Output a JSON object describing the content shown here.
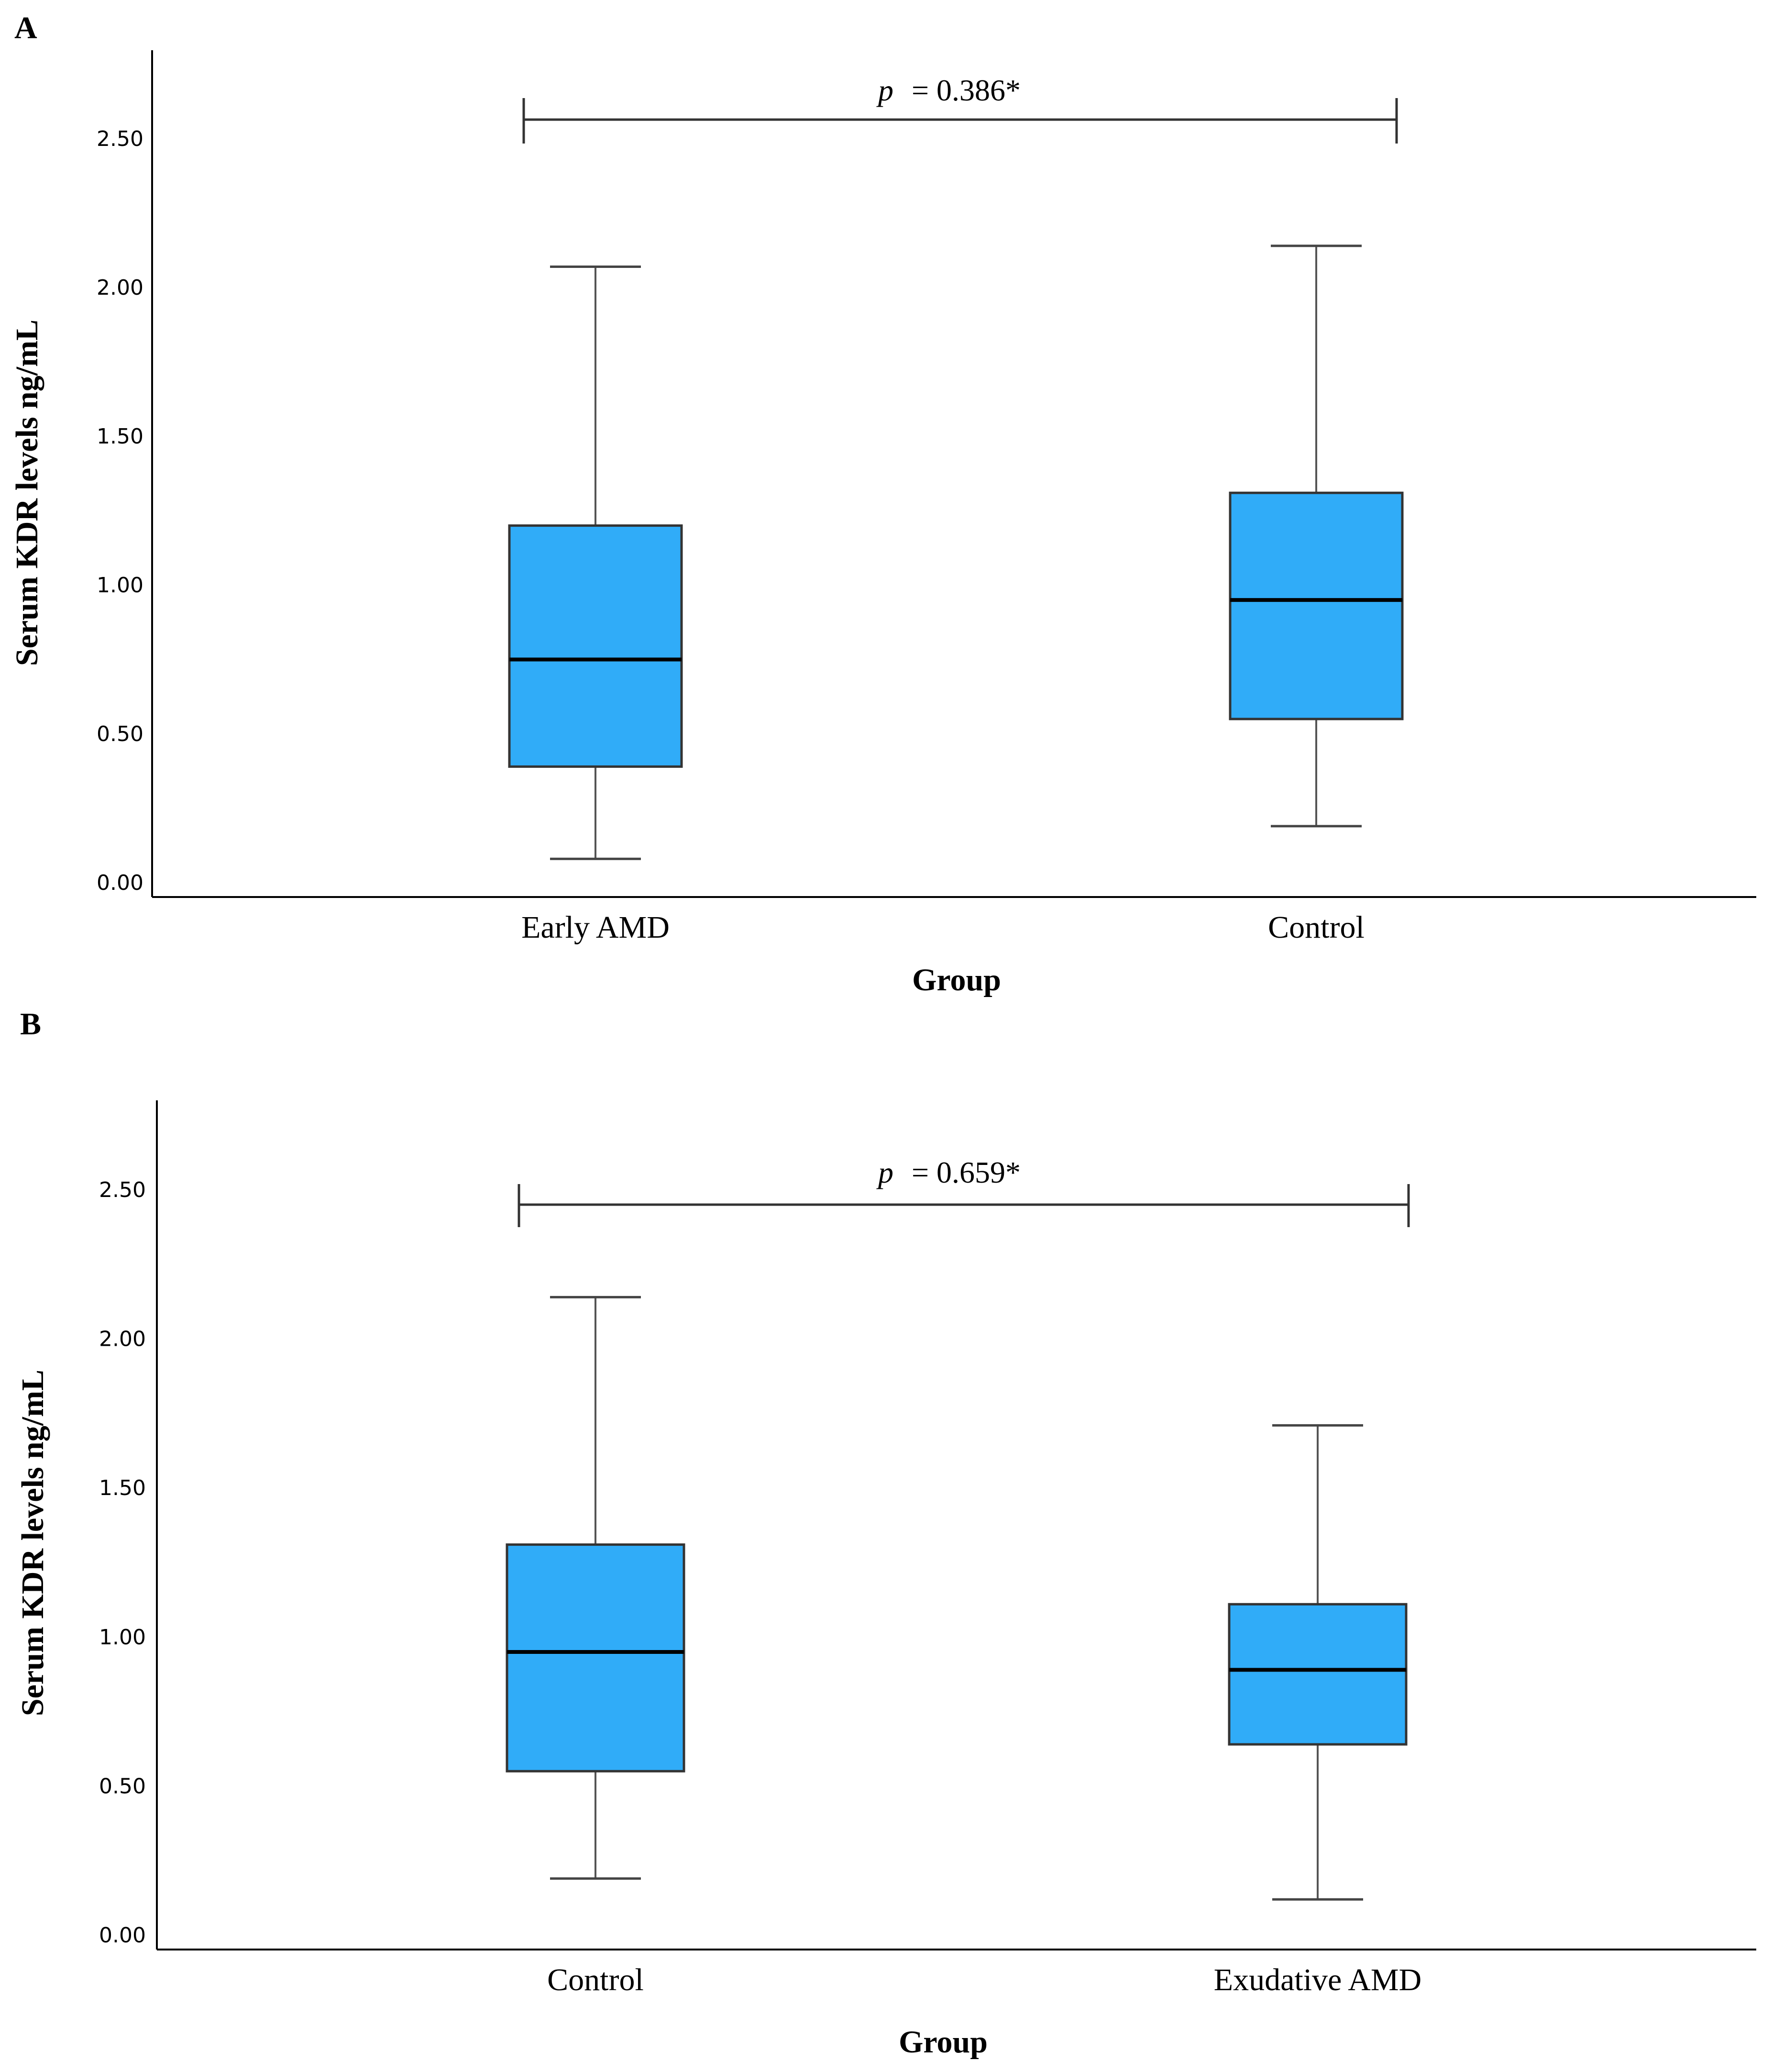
{
  "chart_data": [
    {
      "type": "boxplot",
      "panel_label": "A",
      "xlabel": "Group",
      "ylabel": "Serum KDR levels ng/mL",
      "ylim": [
        0,
        2.75
      ],
      "yticks": [
        "0.00",
        "0.50",
        "1.00",
        "1.50",
        "2.00",
        "2.50"
      ],
      "categories": [
        "Early AMD",
        "Control"
      ],
      "boxes": [
        {
          "min": 0.08,
          "q1": 0.39,
          "median": 0.75,
          "q3": 1.2,
          "max": 2.07
        },
        {
          "min": 0.19,
          "q1": 0.55,
          "median": 0.95,
          "q3": 1.31,
          "max": 2.14
        }
      ],
      "annotation": {
        "p_symbol": "p",
        "p_text": "= 0.386*"
      },
      "colors": {
        "box": "#30acf8",
        "line": "#000000"
      }
    },
    {
      "type": "boxplot",
      "panel_label": "B",
      "xlabel": "Group",
      "ylabel": "Serum KDR levels ng/mL",
      "ylim": [
        0,
        2.75
      ],
      "yticks": [
        "0.00",
        "0.50",
        "1.00",
        "1.50",
        "2.00",
        "2.50"
      ],
      "categories": [
        "Control",
        "Exudative AMD"
      ],
      "boxes": [
        {
          "min": 0.19,
          "q1": 0.55,
          "median": 0.95,
          "q3": 1.31,
          "max": 2.14
        },
        {
          "min": 0.12,
          "q1": 0.64,
          "median": 0.89,
          "q3": 1.11,
          "max": 1.71
        }
      ],
      "annotation": {
        "p_symbol": "p",
        "p_text": "= 0.659*"
      },
      "colors": {
        "box": "#30acf8",
        "line": "#000000"
      }
    }
  ]
}
